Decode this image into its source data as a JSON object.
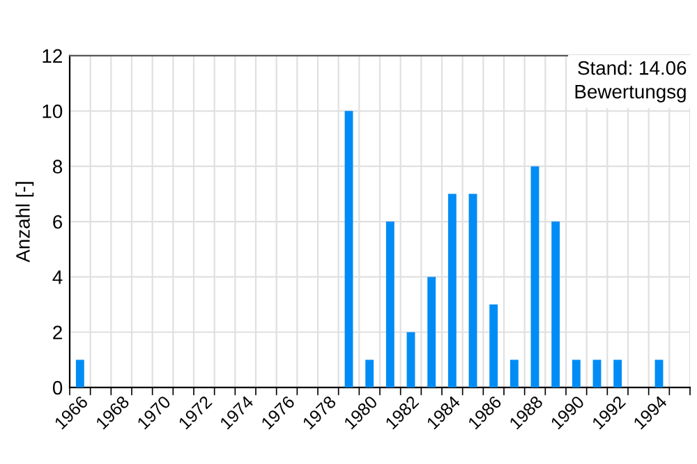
{
  "chart_data": {
    "type": "bar",
    "ylabel": "Anzahl [-]",
    "categories": [
      "1966",
      null,
      "1968",
      null,
      "1970",
      null,
      "1972",
      null,
      "1974",
      null,
      "1976",
      null,
      "1978",
      null,
      "1980",
      null,
      "1982",
      null,
      "1984",
      null,
      "1986",
      null,
      "1988",
      null,
      "1990",
      null,
      "1992",
      null,
      "1994",
      null
    ],
    "values": [
      1,
      0,
      0,
      0,
      0,
      0,
      0,
      0,
      0,
      0,
      0,
      0,
      0,
      10,
      1,
      6,
      2,
      4,
      7,
      7,
      3,
      1,
      8,
      6,
      1,
      1,
      1,
      0,
      1,
      0
    ],
    "color": "#008cf5",
    "ylim": [
      0,
      12
    ],
    "yticks": [
      0,
      2,
      4,
      6,
      8,
      10,
      12
    ],
    "grid": true,
    "annotations": [
      "Stand: 14.06",
      "Bewertungsg"
    ]
  }
}
